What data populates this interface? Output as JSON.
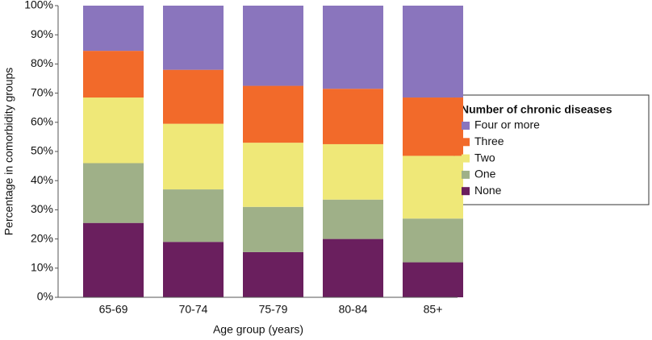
{
  "chart_data": {
    "type": "stacked_bar_100",
    "x_label": "Age group (years)",
    "y_label": "Percentage in comorbidity groups",
    "legend_title": "Number of chronic diseases",
    "legend_position": "right",
    "grid": false,
    "categories": [
      "65-69",
      "70-74",
      "75-79",
      "80-84",
      "85+"
    ],
    "series": [
      {
        "name": "None",
        "color": "#6a1f5e",
        "values": [
          25.5,
          19,
          15.5,
          20,
          12
        ]
      },
      {
        "name": "One",
        "color": "#9fb088",
        "values": [
          20.5,
          18,
          15.5,
          13.5,
          15
        ]
      },
      {
        "name": "Two",
        "color": "#efe878",
        "values": [
          22.5,
          22.5,
          22,
          19,
          21.5
        ]
      },
      {
        "name": "Three",
        "color": "#f26a2a",
        "values": [
          16,
          18.5,
          19.5,
          19,
          20
        ]
      },
      {
        "name": "Four or more",
        "color": "#8a75bd",
        "values": [
          15.5,
          22,
          27.5,
          28.5,
          31.5
        ]
      }
    ],
    "ylim": [
      0,
      100
    ],
    "yticks": [
      {
        "value": 0,
        "label": "0%"
      },
      {
        "value": 10,
        "label": "10%"
      },
      {
        "value": 20,
        "label": "20%"
      },
      {
        "value": 30,
        "label": "30%"
      },
      {
        "value": 40,
        "label": "40%"
      },
      {
        "value": 50,
        "label": "50%"
      },
      {
        "value": 60,
        "label": "60%"
      },
      {
        "value": 70,
        "label": "70%"
      },
      {
        "value": 80,
        "label": "80%"
      },
      {
        "value": 90,
        "label": "90%"
      },
      {
        "value": 100,
        "label": "100%"
      }
    ]
  }
}
